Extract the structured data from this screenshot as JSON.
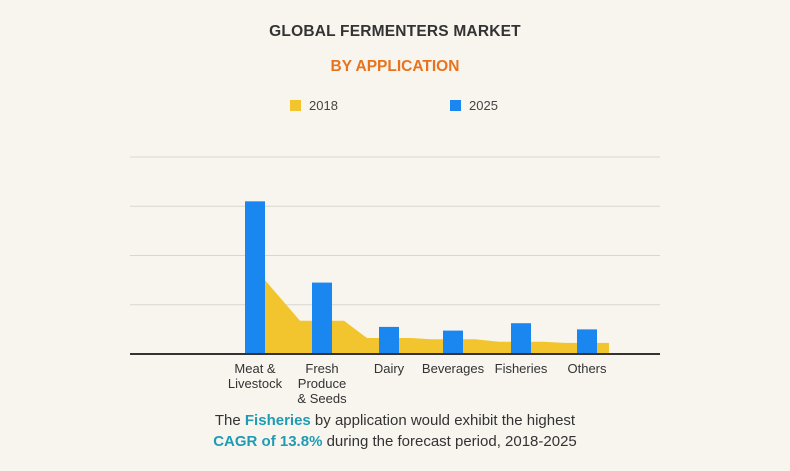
{
  "chart_data": {
    "type": "bar",
    "title": "GLOBAL FERMENTERS MARKET",
    "subtitle": "BY APPLICATION",
    "categories": [
      [
        "Meat &",
        "Livestock"
      ],
      [
        "Fresh",
        "Produce",
        "& Seeds"
      ],
      [
        "Dairy"
      ],
      [
        "Beverages"
      ],
      [
        "Fisheries"
      ],
      [
        "Others"
      ]
    ],
    "series": [
      {
        "name": "2018",
        "render": "area",
        "values": [
          30,
          13.5,
          6.5,
          6,
          5,
          4.5
        ]
      },
      {
        "name": "2025",
        "render": "bar",
        "values": [
          62,
          29,
          11,
          9.5,
          12.5,
          10
        ]
      }
    ],
    "ylim": [
      0,
      80
    ],
    "grid": true,
    "legend_placement": "top-center"
  },
  "colors": {
    "series_2018": "#f2c52e",
    "series_2025": "#1a86f0",
    "subtitle": "#e8731e",
    "highlight": "#1f9bb4",
    "grid": "#d9d6cf",
    "axis": "#333333"
  },
  "caption": {
    "line1_pre": "The ",
    "line1_highlight": "Fisheries",
    "line1_post": " by application would exhibit the highest",
    "line2_highlight": "CAGR of 13.8%",
    "line2_post": " during the forecast period, 2018-2025"
  }
}
